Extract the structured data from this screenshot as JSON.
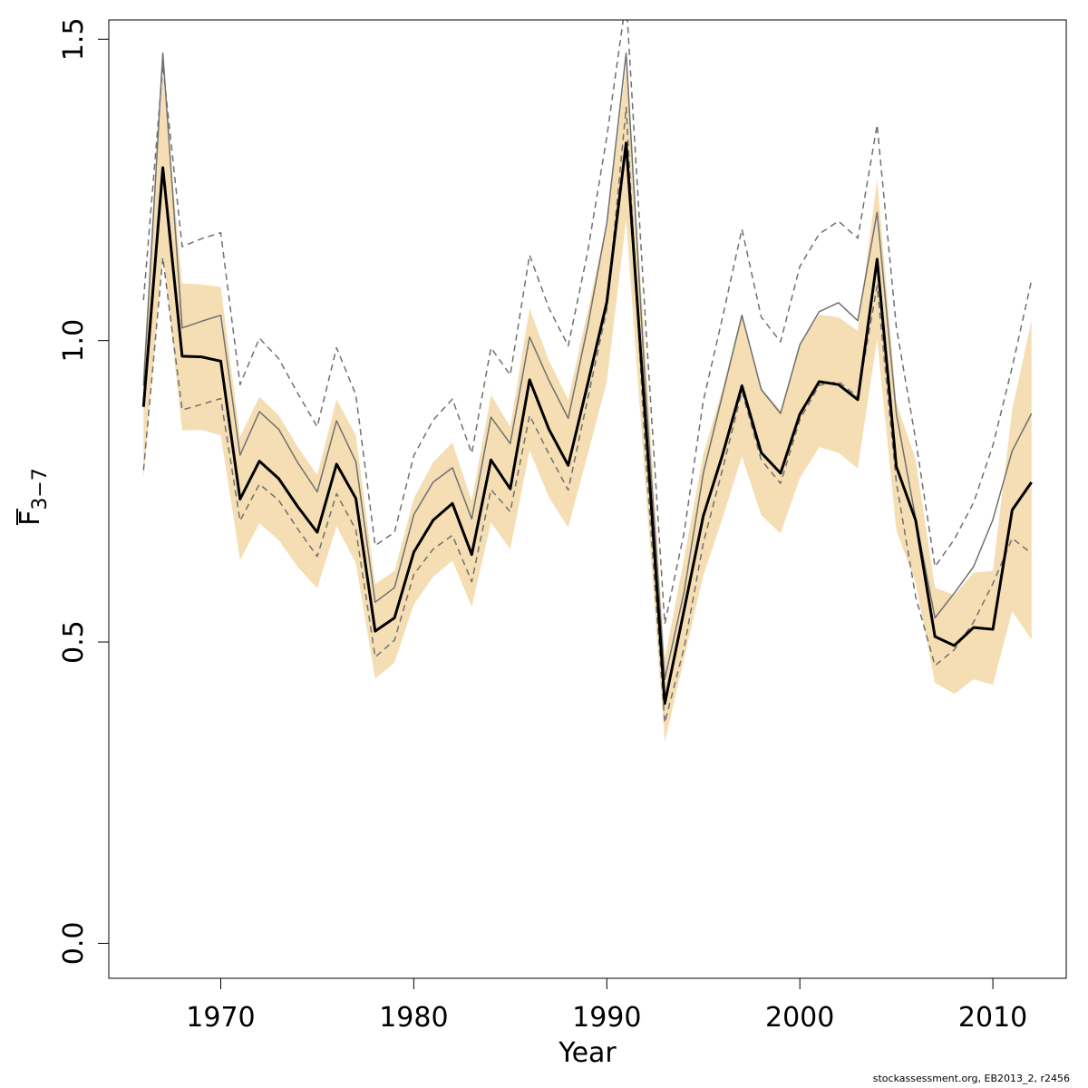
{
  "chart_data": {
    "type": "line",
    "xlabel": "Year",
    "ylabel_main": "F",
    "ylabel_sub": "3−7",
    "xlim": [
      1964.2,
      2013.8
    ],
    "ylim": [
      -0.058,
      1.532
    ],
    "xticks": [
      1970,
      1980,
      1990,
      2000,
      2010
    ],
    "yticks": [
      0.0,
      0.5,
      1.0,
      1.5
    ],
    "ytick_labels": [
      "0.0",
      "0.5",
      "1.0",
      "1.5"
    ],
    "grid": false,
    "colors": {
      "band": "#f5deb3",
      "main": "#000000",
      "grey": "#707070"
    },
    "x": [
      1966,
      1967,
      1968,
      1969,
      1970,
      1971,
      1972,
      1973,
      1974,
      1975,
      1976,
      1977,
      1978,
      1979,
      1980,
      1981,
      1982,
      1983,
      1984,
      1985,
      1986,
      1987,
      1988,
      1989,
      1990,
      1991,
      1992,
      1993,
      1994,
      1995,
      1996,
      1997,
      1998,
      1999,
      2000,
      2001,
      2002,
      2003,
      2004,
      2005,
      2006,
      2007,
      2008,
      2009,
      2010,
      2011,
      2012
    ],
    "series": [
      {
        "role": "estimate",
        "style": "thick-black",
        "values": [
          0.89,
          1.287,
          0.974,
          0.973,
          0.966,
          0.737,
          0.8,
          0.771,
          0.724,
          0.682,
          0.795,
          0.738,
          0.518,
          0.54,
          0.649,
          0.702,
          0.73,
          0.645,
          0.802,
          0.754,
          0.935,
          0.853,
          0.793,
          0.927,
          1.064,
          1.328,
          0.868,
          0.398,
          0.553,
          0.709,
          0.811,
          0.925,
          0.814,
          0.78,
          0.878,
          0.932,
          0.927,
          0.902,
          1.135,
          0.791,
          0.702,
          0.509,
          0.494,
          0.524,
          0.521,
          0.719,
          0.765
        ]
      },
      {
        "role": "band-upper",
        "values": [
          0.96,
          1.442,
          1.095,
          1.093,
          1.089,
          0.84,
          0.907,
          0.876,
          0.823,
          0.777,
          0.902,
          0.843,
          0.596,
          0.618,
          0.738,
          0.798,
          0.831,
          0.734,
          0.91,
          0.857,
          1.053,
          0.967,
          0.902,
          1.048,
          1.196,
          1.456,
          0.98,
          0.472,
          0.639,
          0.812,
          0.921,
          1.046,
          0.92,
          0.885,
          0.996,
          1.043,
          1.039,
          1.016,
          1.268,
          0.898,
          0.802,
          0.59,
          0.578,
          0.615,
          0.618,
          0.885,
          1.034
        ]
      },
      {
        "role": "band-lower",
        "values": [
          0.771,
          1.144,
          0.851,
          0.852,
          0.843,
          0.636,
          0.697,
          0.669,
          0.624,
          0.589,
          0.692,
          0.631,
          0.439,
          0.466,
          0.562,
          0.608,
          0.635,
          0.558,
          0.698,
          0.654,
          0.818,
          0.74,
          0.69,
          0.81,
          0.932,
          1.2,
          0.76,
          0.334,
          0.472,
          0.61,
          0.706,
          0.808,
          0.71,
          0.68,
          0.772,
          0.823,
          0.814,
          0.788,
          1.003,
          0.685,
          0.598,
          0.432,
          0.414,
          0.438,
          0.429,
          0.551,
          0.504
        ]
      },
      {
        "role": "thin-grey",
        "style": "solid",
        "values": [
          0.925,
          1.477,
          1.021,
          1.032,
          1.042,
          0.81,
          0.882,
          0.853,
          0.797,
          0.749,
          0.867,
          0.799,
          0.566,
          0.59,
          0.711,
          0.765,
          0.789,
          0.704,
          0.873,
          0.829,
          1.006,
          0.934,
          0.871,
          1.022,
          1.195,
          1.477,
          0.921,
          0.438,
          0.583,
          0.78,
          0.911,
          1.042,
          0.919,
          0.879,
          0.993,
          1.048,
          1.063,
          1.033,
          1.213,
          0.879,
          0.705,
          0.54,
          0.581,
          0.625,
          0.703,
          0.817,
          0.879
        ]
      },
      {
        "role": "dashed-upper",
        "style": "dashed",
        "values": [
          1.067,
          1.457,
          1.156,
          1.169,
          1.179,
          0.927,
          1.004,
          0.97,
          0.912,
          0.857,
          0.988,
          0.91,
          0.66,
          0.682,
          0.809,
          0.868,
          0.903,
          0.813,
          0.988,
          0.943,
          1.142,
          1.054,
          0.991,
          1.146,
          1.338,
          1.567,
          1.033,
          0.53,
          0.681,
          0.9,
          1.039,
          1.185,
          1.039,
          0.998,
          1.123,
          1.177,
          1.198,
          1.17,
          1.358,
          1.022,
          0.836,
          0.625,
          0.67,
          0.731,
          0.826,
          0.956,
          1.1
        ]
      },
      {
        "role": "dashed-lower",
        "style": "dashed",
        "values": [
          0.785,
          1.138,
          0.885,
          0.894,
          0.904,
          0.701,
          0.762,
          0.735,
          0.687,
          0.642,
          0.746,
          0.686,
          0.475,
          0.503,
          0.612,
          0.654,
          0.677,
          0.6,
          0.753,
          0.716,
          0.876,
          0.812,
          0.752,
          0.902,
          1.052,
          1.387,
          0.811,
          0.366,
          0.49,
          0.664,
          0.787,
          0.916,
          0.802,
          0.763,
          0.869,
          0.926,
          0.932,
          0.907,
          1.091,
          0.765,
          0.575,
          0.461,
          0.487,
          0.533,
          0.597,
          0.672,
          0.647
        ]
      }
    ]
  },
  "footer": {
    "text": "stockassessment.org, EB2013_2, r2456"
  }
}
